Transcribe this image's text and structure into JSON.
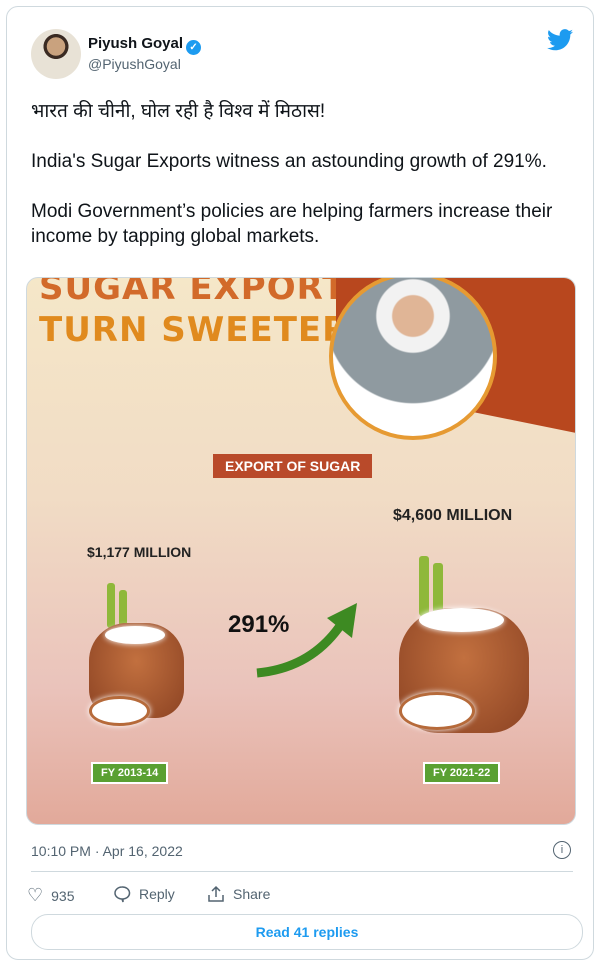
{
  "tweet": {
    "author_name": "Piyush Goyal",
    "author_handle": "@PiyushGoyal",
    "text": "भारत की चीनी, घोल रही है विश्व में मिठास!\n\nIndia's Sugar Exports witness an astounding growth of 291%.\n\nModi Government’s policies are helping farmers increase their income by tapping global markets.",
    "timestamp": "10:10 PM · Apr 16, 2022",
    "likes": "935",
    "reply_label": "Reply",
    "share_label": "Share",
    "read_replies_label": "Read 41 replies"
  },
  "infographic": {
    "title_line1": "SUGAR EXPORTS",
    "title_line2": "TURN SWEETER",
    "badge": "EXPORT OF SUGAR",
    "value_left": "$1,177 MILLION",
    "value_right": "$4,600 MILLION",
    "growth": "291%",
    "year_left": "FY 2013-14",
    "year_right": "FY 2021-22"
  },
  "colors": {
    "accent": "#1d9bf0",
    "title": "#e08a1e",
    "badge": "#b94a2a",
    "year_badge": "#5aa032"
  }
}
